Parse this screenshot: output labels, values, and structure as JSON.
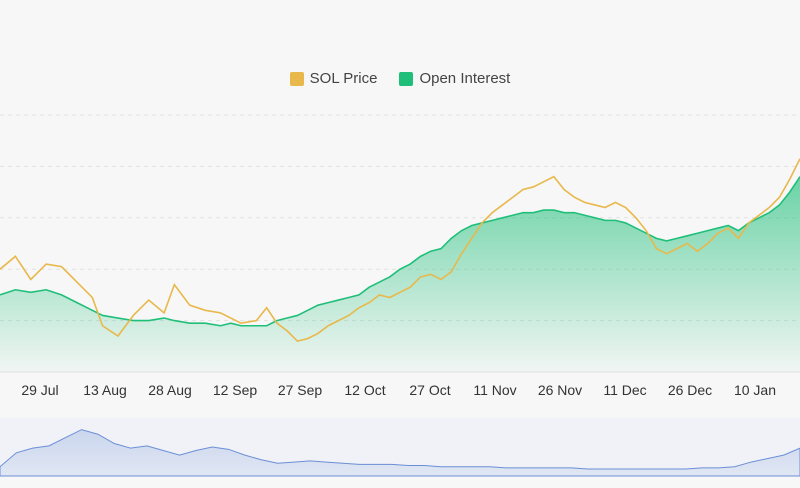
{
  "colors": {
    "price": "#e8b84a",
    "oi": "#1fbf7a",
    "navigator": "#6b8fd6",
    "grid": "#e2e2e2"
  },
  "chart_data": {
    "type": "line",
    "legend": [
      {
        "name": "SOL Price",
        "color": "#e8b84a"
      },
      {
        "name": "Open Interest",
        "color": "#1fbf7a"
      }
    ],
    "x_tick_labels": [
      "29 Jul",
      "13 Aug",
      "28 Aug",
      "12 Sep",
      "27 Sep",
      "12 Oct",
      "27 Oct",
      "11 Nov",
      "26 Nov",
      "11 Dec",
      "26 Dec",
      "10 Jan"
    ],
    "grid": "horizontal dashed",
    "y_axis_labels_visible": false,
    "series": [
      {
        "name": "SOL Price",
        "style": "line",
        "points": [
          [
            0,
            40
          ],
          [
            3,
            45
          ],
          [
            6,
            36
          ],
          [
            9,
            42
          ],
          [
            12,
            41
          ],
          [
            15,
            35
          ],
          [
            18,
            29
          ],
          [
            20,
            18
          ],
          [
            23,
            14
          ],
          [
            26,
            22
          ],
          [
            29,
            28
          ],
          [
            32,
            23
          ],
          [
            34,
            34
          ],
          [
            37,
            26
          ],
          [
            40,
            24
          ],
          [
            43,
            23
          ],
          [
            45,
            21
          ],
          [
            47,
            19
          ],
          [
            50,
            20
          ],
          [
            52,
            25
          ],
          [
            54,
            19
          ],
          [
            56,
            16
          ],
          [
            58,
            12
          ],
          [
            60,
            13
          ],
          [
            62,
            15
          ],
          [
            64,
            18
          ],
          [
            66,
            20
          ],
          [
            68,
            22
          ],
          [
            70,
            25
          ],
          [
            72,
            27
          ],
          [
            74,
            30
          ],
          [
            76,
            29
          ],
          [
            78,
            31
          ],
          [
            80,
            33
          ],
          [
            82,
            37
          ],
          [
            84,
            38
          ],
          [
            86,
            36
          ],
          [
            88,
            39
          ],
          [
            90,
            46
          ],
          [
            92,
            52
          ],
          [
            94,
            58
          ],
          [
            96,
            62
          ],
          [
            98,
            65
          ],
          [
            100,
            68
          ],
          [
            102,
            71
          ],
          [
            104,
            72
          ],
          [
            106,
            74
          ],
          [
            108,
            76
          ],
          [
            110,
            71
          ],
          [
            112,
            68
          ],
          [
            114,
            66
          ],
          [
            116,
            65
          ],
          [
            118,
            64
          ],
          [
            120,
            66
          ],
          [
            122,
            64
          ],
          [
            124,
            60
          ],
          [
            126,
            55
          ],
          [
            128,
            48
          ],
          [
            130,
            46
          ],
          [
            132,
            48
          ],
          [
            134,
            50
          ],
          [
            136,
            47
          ],
          [
            138,
            50
          ],
          [
            140,
            54
          ],
          [
            142,
            56
          ],
          [
            144,
            52
          ],
          [
            146,
            58
          ],
          [
            148,
            61
          ],
          [
            150,
            64
          ],
          [
            152,
            68
          ],
          [
            154,
            75
          ],
          [
            156,
            83
          ]
        ]
      },
      {
        "name": "Open Interest",
        "style": "area",
        "points": [
          [
            0,
            30
          ],
          [
            3,
            32
          ],
          [
            6,
            31
          ],
          [
            9,
            32
          ],
          [
            12,
            30
          ],
          [
            15,
            27
          ],
          [
            18,
            24
          ],
          [
            20,
            22
          ],
          [
            23,
            21
          ],
          [
            26,
            20
          ],
          [
            29,
            20
          ],
          [
            32,
            21
          ],
          [
            34,
            20
          ],
          [
            37,
            19
          ],
          [
            40,
            19
          ],
          [
            43,
            18
          ],
          [
            45,
            19
          ],
          [
            47,
            18
          ],
          [
            50,
            18
          ],
          [
            52,
            18
          ],
          [
            54,
            20
          ],
          [
            56,
            21
          ],
          [
            58,
            22
          ],
          [
            60,
            24
          ],
          [
            62,
            26
          ],
          [
            64,
            27
          ],
          [
            66,
            28
          ],
          [
            68,
            29
          ],
          [
            70,
            30
          ],
          [
            72,
            33
          ],
          [
            74,
            35
          ],
          [
            76,
            37
          ],
          [
            78,
            40
          ],
          [
            80,
            42
          ],
          [
            82,
            45
          ],
          [
            84,
            47
          ],
          [
            86,
            48
          ],
          [
            88,
            52
          ],
          [
            90,
            55
          ],
          [
            92,
            57
          ],
          [
            94,
            58
          ],
          [
            96,
            59
          ],
          [
            98,
            60
          ],
          [
            100,
            61
          ],
          [
            102,
            62
          ],
          [
            104,
            62
          ],
          [
            106,
            63
          ],
          [
            108,
            63
          ],
          [
            110,
            62
          ],
          [
            112,
            62
          ],
          [
            114,
            61
          ],
          [
            116,
            60
          ],
          [
            118,
            59
          ],
          [
            120,
            59
          ],
          [
            122,
            58
          ],
          [
            124,
            56
          ],
          [
            126,
            54
          ],
          [
            128,
            52
          ],
          [
            130,
            51
          ],
          [
            132,
            52
          ],
          [
            134,
            53
          ],
          [
            136,
            54
          ],
          [
            138,
            55
          ],
          [
            140,
            56
          ],
          [
            142,
            57
          ],
          [
            144,
            55
          ],
          [
            146,
            58
          ],
          [
            148,
            60
          ],
          [
            150,
            62
          ],
          [
            152,
            65
          ],
          [
            154,
            70
          ],
          [
            156,
            76
          ]
        ]
      }
    ],
    "navigator": {
      "type": "area",
      "values": [
        8,
        20,
        24,
        26,
        33,
        40,
        36,
        28,
        24,
        26,
        22,
        18,
        22,
        25,
        23,
        18,
        14,
        11,
        12,
        13,
        12,
        11,
        10,
        10,
        10,
        9,
        9,
        8,
        8,
        8,
        8,
        7,
        7,
        7,
        7,
        7,
        6,
        6,
        6,
        6,
        6,
        6,
        6,
        7,
        7,
        8,
        12,
        15,
        18,
        24
      ]
    }
  }
}
